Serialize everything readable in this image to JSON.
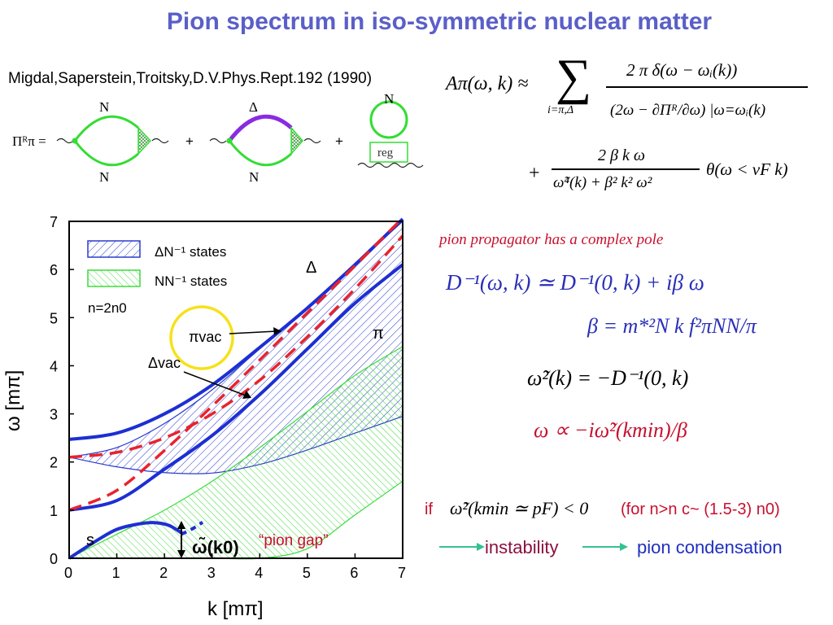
{
  "title": "Pion spectrum in iso-symmetric nuclear matter",
  "reference": "Migdal,Saperstein,Troitsky,D.V.Phys.Rept.192 (1990)",
  "diagrams": {
    "lhs": "Πᴿπ =",
    "plus": "+",
    "nucleon": "N",
    "delta": "Δ",
    "reg": "reg"
  },
  "formulas": {
    "spectral_lhs": "Aπ(ω, k) ≈",
    "sum_sub": "i=π,Δ",
    "num1": "2 π δ(ω − ωᵢ(k))",
    "den1": "(2ω − ∂Πᴿ/∂ω) |ω=ωᵢ(k)",
    "num2": "2 β k ω",
    "den2": "ω̃⁴(k) + β² k² ω²",
    "theta": "θ(ω < vF k)"
  },
  "right_panel": {
    "pole_text": "pion propagator has a complex pole",
    "eq1": "D⁻¹(ω, k) ≃ D⁻¹(0, k) + iβ ω",
    "eq2": "β = m*²N k f²πNN/π",
    "eq3": "ω̃²(k) = −D⁻¹(0, k)",
    "eq4": "ω ∝ −iω̃²(kmin)/β",
    "if": "if",
    "cond": "ω̃²(kmin ≃ pF) < 0",
    "for_nc": "(for n>n c~ (1.5-3) n0)",
    "instability": "instability",
    "condensation": "pion condensation"
  },
  "chart_data": {
    "type": "line",
    "xlabel": "k [mπ]",
    "ylabel": "ω [mπ]",
    "xlim": [
      0,
      7
    ],
    "ylim": [
      0,
      7
    ],
    "xticks": [
      "0",
      "1",
      "2",
      "3",
      "4",
      "5",
      "6",
      "7"
    ],
    "yticks": [
      "0",
      "1",
      "2",
      "3",
      "4",
      "5",
      "6",
      "7"
    ],
    "legend": [
      "ΔN⁻¹ states",
      "NN⁻¹ states"
    ],
    "density_label": "n=2n0",
    "annotations": {
      "pi_vac": "πvac",
      "delta_vac": "Δvac",
      "delta": "Δ",
      "pi": "π",
      "s": "s",
      "omega_k0": "ω̃(k0)",
      "pion_gap": "“pion gap”"
    },
    "series": [
      {
        "name": "Δ",
        "style": "solid",
        "x": [
          0,
          1,
          2,
          3,
          4,
          5,
          6,
          7
        ],
        "y": [
          2.47,
          2.6,
          3.0,
          3.6,
          4.38,
          5.2,
          6.1,
          7.05
        ]
      },
      {
        "name": "π",
        "style": "solid",
        "x": [
          0,
          1,
          2,
          3,
          4,
          5,
          6,
          7
        ],
        "y": [
          1.0,
          1.2,
          1.85,
          2.55,
          3.4,
          4.35,
          5.3,
          6.1
        ]
      },
      {
        "style": "solid",
        "x": [
          0,
          0.5,
          1,
          1.5,
          1.8,
          2.1,
          2.4
        ],
        "y": [
          0.0,
          0.32,
          0.6,
          0.72,
          0.74,
          0.68,
          0.5
        ]
      },
      {
        "name": "πvac",
        "style": "dashed",
        "x": [
          0,
          1,
          2,
          3,
          4,
          5,
          6,
          7
        ],
        "y": [
          1.0,
          1.41,
          2.24,
          3.16,
          4.12,
          5.1,
          6.08,
          7.07
        ]
      },
      {
        "name": "Δvac",
        "style": "dashed",
        "x": [
          0,
          1,
          2,
          3,
          4,
          5,
          6,
          7
        ],
        "y": [
          2.1,
          2.2,
          2.5,
          3.0,
          3.7,
          4.6,
          5.6,
          6.7
        ]
      }
    ],
    "bands": [
      {
        "name": "ΔN⁻¹ states",
        "x": [
          0,
          1,
          2,
          3,
          4,
          5,
          6,
          7
        ],
        "lower": [
          2.1,
          1.9,
          1.78,
          1.77,
          1.95,
          2.25,
          2.6,
          2.95
        ],
        "upper": [
          2.1,
          2.3,
          2.8,
          3.5,
          4.35,
          5.2,
          6.1,
          7.0
        ]
      },
      {
        "name": "NN⁻¹ states",
        "x": [
          0,
          1,
          2,
          3,
          4,
          5,
          6,
          7
        ],
        "lower": [
          0,
          0,
          0,
          0,
          0,
          0.2,
          0.9,
          1.6
        ],
        "upper": [
          0,
          0.5,
          1.0,
          1.6,
          2.3,
          3.05,
          3.8,
          4.4
        ]
      }
    ],
    "colors": {
      "solid": "#1d2fd2",
      "dashed": "#e8232d",
      "delta_band": "#2b3bcc",
      "nn_band": "#3bdc3b",
      "circle": "#f5e21a"
    }
  }
}
